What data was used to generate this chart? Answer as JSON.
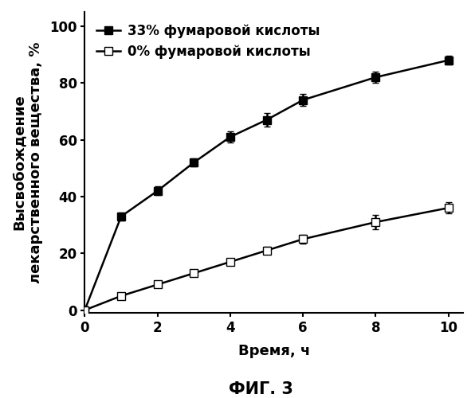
{
  "title": "ФИГ. 3",
  "xlabel": "Время, ч",
  "ylabel": "Высвобождение\nлекарственного вещества, %",
  "xlim": [
    0,
    10.4
  ],
  "ylim": [
    -1,
    105
  ],
  "xticks": [
    0,
    2,
    4,
    6,
    8,
    10
  ],
  "yticks": [
    0,
    20,
    40,
    60,
    80,
    100
  ],
  "series1_label": "33% фумаровой кислоты",
  "series2_label": "0% фумаровой кислоты",
  "series1_x": [
    0,
    1,
    2,
    3,
    4,
    5,
    6,
    8,
    10
  ],
  "series1_y": [
    0,
    33,
    42,
    52,
    61,
    67,
    74,
    82,
    88
  ],
  "series1_yerr": [
    0,
    1.5,
    1.5,
    1.5,
    2.0,
    2.5,
    2.0,
    2.0,
    1.5
  ],
  "series2_x": [
    0,
    1,
    2,
    3,
    4,
    5,
    6,
    8,
    10
  ],
  "series2_y": [
    0,
    5,
    9,
    13,
    17,
    21,
    25,
    31,
    36
  ],
  "series2_yerr": [
    0,
    0.8,
    0.8,
    0.8,
    1.0,
    1.2,
    1.5,
    2.5,
    2.0
  ],
  "line_color": "#000000",
  "marker1": "s",
  "marker2": "s",
  "markersize": 7,
  "linewidth": 1.8,
  "capsize": 3,
  "legend_fontsize": 12,
  "axis_fontsize": 13,
  "tick_fontsize": 12,
  "title_fontsize": 15
}
